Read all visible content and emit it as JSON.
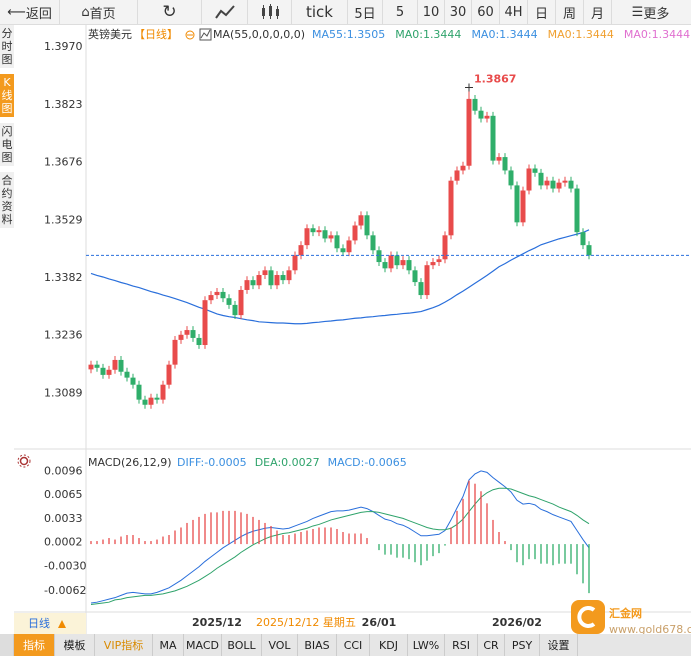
{
  "toolbar": {
    "back": "返回",
    "home": "首页",
    "tick": "tick",
    "periods": [
      "5日",
      "5",
      "10",
      "30",
      "60",
      "4H",
      "日",
      "周",
      "月"
    ],
    "more": "更多"
  },
  "sidebar": [
    "分时图",
    "K线图",
    "闪电图",
    "合约资料"
  ],
  "chart_data": [
    {
      "type": "candlestick",
      "symbol": "英镑美元",
      "period": "【日线】",
      "indicator": "MA(55,0,0,0,0,0)",
      "legend": [
        {
          "text": "MA55:1.3505",
          "color": "#3b8fe0"
        },
        {
          "text": "MA0:1.3444",
          "color": "#2fa36b"
        },
        {
          "text": "MA0:1.3444",
          "color": "#3b8fe0"
        },
        {
          "text": "MA0:1.3444",
          "color": "#f0a030"
        },
        {
          "text": "MA0:1.3444",
          "color": "#e070d0"
        }
      ],
      "up_color": "#e84b4b",
      "down_color": "#2fae6a",
      "ylim": [
        1.295,
        1.4026
      ],
      "yticks": [
        {
          "value": 1.397,
          "label": "1.3970"
        },
        1.3823,
        1.3676,
        1.3529,
        1.3382,
        1.3236,
        1.3089
      ],
      "categories": [
        null,
        null,
        null,
        null,
        null,
        null,
        null,
        null,
        null,
        null,
        null,
        null,
        null,
        null,
        null,
        null,
        null,
        null,
        null,
        null,
        null,
        "2025/12",
        null,
        null,
        null,
        null,
        null,
        null,
        null,
        null,
        null,
        null,
        null,
        null,
        null,
        null,
        null,
        null,
        null,
        null,
        null,
        null,
        null,
        null,
        null,
        null,
        null,
        null,
        "26/01",
        null,
        null,
        null,
        null,
        null,
        null,
        null,
        null,
        null,
        null,
        null,
        null,
        null,
        null,
        null,
        null,
        null,
        null,
        null,
        null,
        null,
        null,
        "2026/02",
        null,
        null,
        null,
        null,
        null,
        null,
        null,
        null,
        null,
        null,
        null,
        null
      ],
      "open": [
        1.315,
        1.3162,
        1.3154,
        1.3136,
        1.3149,
        1.3174,
        1.3144,
        1.3129,
        1.3111,
        1.3073,
        1.306,
        1.3078,
        1.3073,
        1.3111,
        1.3162,
        1.3225,
        1.3238,
        1.325,
        1.323,
        1.3212,
        1.3326,
        1.3339,
        1.3347,
        1.3331,
        1.3314,
        1.3288,
        1.3352,
        1.3377,
        1.3364,
        1.339,
        1.3402,
        1.3364,
        1.339,
        1.3377,
        1.3402,
        1.344,
        1.3466,
        1.3509,
        1.3499,
        1.3504,
        1.3483,
        1.3491,
        1.3458,
        1.3448,
        1.3478,
        1.3516,
        1.3542,
        1.3491,
        1.3453,
        1.3423,
        1.3407,
        1.344,
        1.3415,
        1.3428,
        1.3402,
        1.3372,
        1.3339,
        1.3415,
        1.3423,
        1.343,
        1.3491,
        1.363,
        1.3656,
        1.3668,
        1.3838,
        1.3808,
        1.3788,
        1.3795,
        1.3681,
        1.369,
        1.3656,
        1.3618,
        1.3524,
        1.3605,
        1.3661,
        1.365,
        1.3618,
        1.363,
        1.361,
        1.3625,
        1.363,
        1.361,
        1.3499,
        1.3466
      ],
      "high": [
        1.3172,
        1.3172,
        1.3164,
        1.3159,
        1.3184,
        1.3184,
        1.3154,
        1.3139,
        1.3121,
        1.3083,
        1.3088,
        1.3088,
        1.3121,
        1.3172,
        1.3235,
        1.3248,
        1.326,
        1.326,
        1.324,
        1.3336,
        1.3349,
        1.3357,
        1.3357,
        1.3341,
        1.3324,
        1.3362,
        1.3387,
        1.3387,
        1.34,
        1.3412,
        1.3412,
        1.34,
        1.34,
        1.3412,
        1.345,
        1.3476,
        1.3519,
        1.3519,
        1.3514,
        1.3514,
        1.3501,
        1.3501,
        1.3468,
        1.3488,
        1.3526,
        1.3552,
        1.3552,
        1.3501,
        1.3463,
        1.3433,
        1.345,
        1.345,
        1.3438,
        1.3438,
        1.3412,
        1.3382,
        1.3425,
        1.3433,
        1.344,
        1.3501,
        1.364,
        1.3666,
        1.3678,
        1.3867,
        1.3848,
        1.3818,
        1.3805,
        1.3805,
        1.37,
        1.37,
        1.3666,
        1.3628,
        1.3615,
        1.3671,
        1.3671,
        1.366,
        1.364,
        1.364,
        1.3635,
        1.364,
        1.364,
        1.362,
        1.3509,
        1.3476
      ],
      "low": [
        1.314,
        1.3144,
        1.3126,
        1.3126,
        1.3139,
        1.3134,
        1.3119,
        1.3101,
        1.3063,
        1.305,
        1.305,
        1.3063,
        1.3063,
        1.3101,
        1.3152,
        1.3215,
        1.3228,
        1.322,
        1.3202,
        1.3202,
        1.3316,
        1.3329,
        1.3321,
        1.3304,
        1.3278,
        1.3278,
        1.3342,
        1.3354,
        1.3354,
        1.338,
        1.3354,
        1.3354,
        1.3367,
        1.3367,
        1.3392,
        1.343,
        1.3456,
        1.3489,
        1.3489,
        1.3473,
        1.3473,
        1.3448,
        1.3438,
        1.3438,
        1.3468,
        1.3506,
        1.3481,
        1.3443,
        1.3413,
        1.3397,
        1.3397,
        1.3405,
        1.3405,
        1.3392,
        1.3362,
        1.3329,
        1.3329,
        1.3405,
        1.3413,
        1.342,
        1.3481,
        1.362,
        1.3646,
        1.3658,
        1.3798,
        1.3778,
        1.3778,
        1.3671,
        1.3671,
        1.3646,
        1.3608,
        1.3514,
        1.3514,
        1.3595,
        1.364,
        1.3608,
        1.3608,
        1.36,
        1.36,
        1.3615,
        1.36,
        1.3489,
        1.3456,
        1.343
      ],
      "close": [
        1.3162,
        1.3154,
        1.3136,
        1.3149,
        1.3174,
        1.3144,
        1.3129,
        1.3111,
        1.3073,
        1.306,
        1.3078,
        1.3073,
        1.3111,
        1.3162,
        1.3225,
        1.3238,
        1.325,
        1.323,
        1.3212,
        1.3326,
        1.3339,
        1.3347,
        1.3331,
        1.3314,
        1.3288,
        1.3352,
        1.3377,
        1.3364,
        1.339,
        1.3402,
        1.3364,
        1.339,
        1.3377,
        1.3402,
        1.344,
        1.3466,
        1.3509,
        1.3499,
        1.3504,
        1.3483,
        1.3491,
        1.3458,
        1.3448,
        1.3478,
        1.3516,
        1.3542,
        1.3491,
        1.3453,
        1.3423,
        1.3407,
        1.344,
        1.3415,
        1.3428,
        1.3402,
        1.3372,
        1.3339,
        1.3415,
        1.3423,
        1.343,
        1.3491,
        1.363,
        1.3656,
        1.3668,
        1.3838,
        1.3808,
        1.3788,
        1.3795,
        1.3681,
        1.369,
        1.3656,
        1.3618,
        1.3524,
        1.3605,
        1.3661,
        1.365,
        1.3618,
        1.363,
        1.361,
        1.3625,
        1.363,
        1.361,
        1.3499,
        1.3466,
        1.344
      ],
      "series": [
        {
          "color": "#2a6fdb",
          "values": [
            1.3394,
            1.3389,
            1.3385,
            1.338,
            1.3376,
            1.3371,
            1.3367,
            1.3362,
            1.3358,
            1.3353,
            1.3348,
            1.3344,
            1.3339,
            1.3335,
            1.333,
            1.3325,
            1.332,
            1.3314,
            1.3308,
            1.3303,
            1.3297,
            1.3291,
            1.3287,
            1.3284,
            1.3282,
            1.3279,
            1.3276,
            1.3274,
            1.3271,
            1.327,
            1.3269,
            1.3268,
            1.3268,
            1.3267,
            1.3266,
            1.3266,
            1.3267,
            1.3269,
            1.327,
            1.3272,
            1.3273,
            1.3275,
            1.3276,
            1.3278,
            1.328,
            1.3281,
            1.3283,
            1.3284,
            1.3286,
            1.3287,
            1.3289,
            1.329,
            1.3292,
            1.3293,
            1.3295,
            1.3297,
            1.3302,
            1.3307,
            1.3313,
            1.3321,
            1.333,
            1.334,
            1.3349,
            1.3359,
            1.3369,
            1.3379,
            1.3389,
            1.34,
            1.3411,
            1.3419,
            1.3428,
            1.3436,
            1.3444,
            1.3452,
            1.3459,
            1.3467,
            1.3472,
            1.3477,
            1.3482,
            1.3486,
            1.349,
            1.3494,
            1.3498,
            1.3505
          ]
        }
      ]
    },
    {
      "type": "macd",
      "title": "MACD(26,12,9)",
      "legend": [
        {
          "text": "DIFF:-0.0005",
          "color": "#3b8fe0"
        },
        {
          "text": "DEA:0.0027",
          "color": "#2fa36b"
        },
        {
          "text": "MACD:-0.0065",
          "color": "#3b8fe0"
        }
      ],
      "ylim": [
        -0.009,
        0.0122
      ],
      "yticks": [
        0.0096,
        0.0065,
        0.0033,
        0.0002,
        {
          "value": -0.003,
          "label": "-0.0030"
        },
        -0.0062
      ],
      "up_color": "#e84b4b",
      "down_color": "#2fae6a",
      "series": [
        {
          "style": "line",
          "color": "#2a6fdb",
          "values": [
            -0.0078,
            -0.0077,
            -0.0075,
            -0.0073,
            -0.0071,
            -0.0068,
            -0.0065,
            -0.0064,
            -0.0065,
            -0.0066,
            -0.0066,
            -0.0064,
            -0.0061,
            -0.0058,
            -0.0053,
            -0.0048,
            -0.0042,
            -0.0036,
            -0.003,
            -0.0023,
            -0.0017,
            -0.0011,
            -0.0005,
            0.0,
            0.0005,
            0.001,
            0.0014,
            0.0017,
            0.0019,
            0.0021,
            0.0022,
            0.0021,
            0.002,
            0.0021,
            0.0024,
            0.0027,
            0.003,
            0.0034,
            0.0037,
            0.004,
            0.0043,
            0.0044,
            0.0044,
            0.0045,
            0.0047,
            0.0049,
            0.0047,
            0.0043,
            0.0038,
            0.0033,
            0.0031,
            0.0027,
            0.0025,
            0.0021,
            0.0016,
            0.0011,
            0.0011,
            0.0012,
            0.0013,
            0.0018,
            0.0032,
            0.0048,
            0.0063,
            0.0085,
            0.0093,
            0.0097,
            0.0095,
            0.0088,
            0.0082,
            0.0076,
            0.0069,
            0.0058,
            0.0053,
            0.0054,
            0.0052,
            0.0046,
            0.0043,
            0.0039,
            0.0036,
            0.0033,
            0.003,
            0.0018,
            0.0006,
            -0.0005
          ]
        },
        {
          "style": "line",
          "color": "#2fa36b",
          "values": [
            -0.008,
            -0.0079,
            -0.0078,
            -0.0077,
            -0.0074,
            -0.0073,
            -0.0071,
            -0.007,
            -0.0069,
            -0.0068,
            -0.0068,
            -0.0067,
            -0.0066,
            -0.0064,
            -0.0062,
            -0.0059,
            -0.0056,
            -0.0052,
            -0.0048,
            -0.0043,
            -0.0038,
            -0.0032,
            -0.0027,
            -0.0022,
            -0.0017,
            -0.0011,
            -0.0006,
            -0.0001,
            0.0003,
            0.0007,
            0.001,
            0.0012,
            0.0014,
            0.0015,
            0.0017,
            0.0019,
            0.0021,
            0.0024,
            0.0026,
            0.0029,
            0.0032,
            0.0034,
            0.0036,
            0.0038,
            0.004,
            0.0042,
            0.0043,
            0.0043,
            0.0042,
            0.004,
            0.0038,
            0.0036,
            0.0034,
            0.0031,
            0.0028,
            0.0025,
            0.0022,
            0.002,
            0.0019,
            0.0019,
            0.0021,
            0.0026,
            0.0033,
            0.0043,
            0.0053,
            0.0062,
            0.0068,
            0.0072,
            0.0074,
            0.0074,
            0.0073,
            0.007,
            0.0067,
            0.0064,
            0.0062,
            0.0059,
            0.0056,
            0.0053,
            0.0049,
            0.0046,
            0.0043,
            0.0038,
            0.0032,
            0.0027
          ]
        },
        {
          "style": "bar",
          "values": [
            0.0004,
            0.0004,
            0.0006,
            0.0008,
            0.0006,
            0.001,
            0.0012,
            0.0012,
            0.0008,
            0.0004,
            0.0004,
            0.0006,
            0.001,
            0.0012,
            0.0018,
            0.0022,
            0.0028,
            0.0032,
            0.0036,
            0.004,
            0.0042,
            0.0042,
            0.0044,
            0.0044,
            0.0044,
            0.0042,
            0.004,
            0.0036,
            0.0032,
            0.0028,
            0.0024,
            0.0018,
            0.0012,
            0.0012,
            0.0014,
            0.0016,
            0.0018,
            0.002,
            0.0022,
            0.0022,
            0.0022,
            0.002,
            0.0016,
            0.0014,
            0.0014,
            0.0014,
            0.0008,
            0,
            -0.0008,
            -0.0014,
            -0.0014,
            -0.0018,
            -0.0018,
            -0.002,
            -0.0024,
            -0.0028,
            -0.0022,
            -0.0016,
            -0.0012,
            -0.0002,
            0.0022,
            0.0044,
            0.006,
            0.0084,
            0.008,
            0.007,
            0.0054,
            0.0032,
            0.0016,
            0.0004,
            -0.0008,
            -0.0024,
            -0.0028,
            -0.002,
            -0.002,
            -0.0026,
            -0.0026,
            -0.0028,
            -0.0026,
            -0.0026,
            -0.0026,
            -0.004,
            -0.0052,
            -0.0065
          ]
        }
      ]
    }
  ],
  "footer": {
    "period": "日线",
    "cursor_date": "2025/12/12 星期五"
  },
  "tabs": [
    "指标",
    "模板",
    "VIP指标",
    "MA",
    "MACD",
    "BOLL",
    "VOL",
    "BIAS",
    "CCI",
    "KDJ",
    "LW%",
    "RSI",
    "CR",
    "PSY",
    "设置"
  ],
  "logo": {
    "name": "汇金网",
    "url": "www.gold678.com"
  }
}
